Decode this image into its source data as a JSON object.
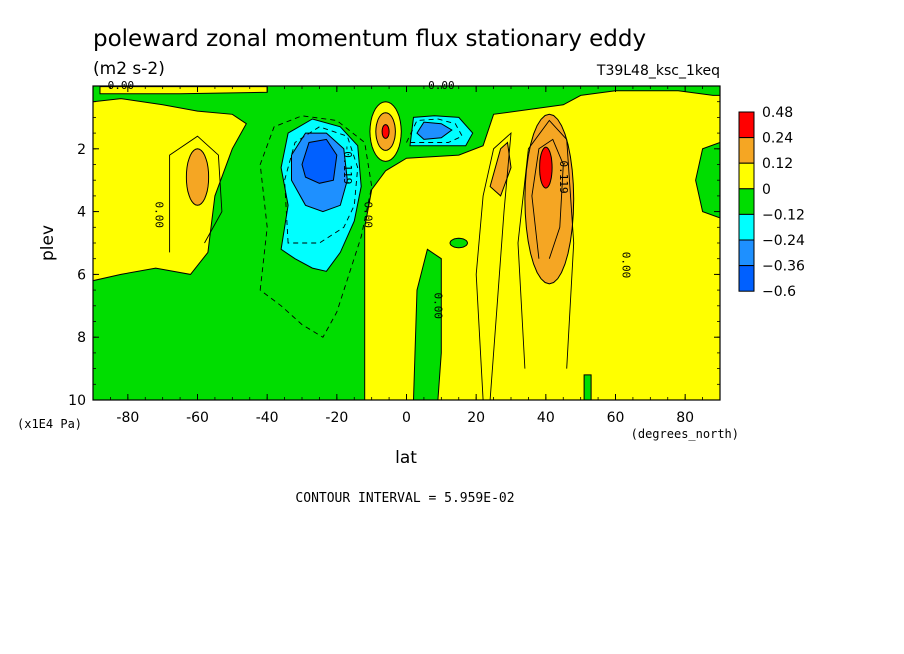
{
  "chart_data": {
    "type": "heatmap",
    "title": "poleward zonal momentum flux stationary eddy",
    "units": "(m2 s-2)",
    "run_label": "T39L48_ksc_1keq",
    "xlabel": "lat",
    "xunits": "(degrees_north)",
    "ylabel": "plev",
    "yunits": "(x1E4 Pa)",
    "xlim": [
      -90,
      90
    ],
    "ylim": [
      10,
      0
    ],
    "x_ticks": [
      -80,
      -60,
      -40,
      -20,
      0,
      20,
      40,
      60,
      80
    ],
    "y_ticks": [
      2,
      4,
      6,
      8,
      10
    ],
    "contour_interval_text": "CONTOUR INTERVAL = 5.959E-02",
    "legend": {
      "placement": "right",
      "labels": [
        "0.48",
        "0.24",
        "0.12",
        "0",
        "−0.12",
        "−0.24",
        "−0.36",
        "−0.6"
      ],
      "colors": [
        "#ff0000",
        "#f5a623",
        "#ffff00",
        "#00dd00",
        "#00ffff",
        "#1e90ff",
        "#0060ff",
        "#ffffff"
      ]
    },
    "band_colors": {
      "neg_strong": "#0060ff",
      "neg_mid": "#1e90ff",
      "neg_weak": "#00ffff",
      "neg_small": "#00dd00",
      "pos_small": "#ffff00",
      "pos_mid": "#f5a623",
      "pos_strong": "#ff0000"
    },
    "contour_labels": [
      {
        "text": "0.00",
        "lat": -82,
        "plev": 0.1
      },
      {
        "text": "0.00",
        "lat": 10,
        "plev": 0.1
      },
      {
        "text": "0.00",
        "lat": -72,
        "plev": 4.1
      },
      {
        "text": "-0.119",
        "lat": -18,
        "plev": 2.5
      },
      {
        "text": "0.00",
        "lat": -12,
        "plev": 4.1
      },
      {
        "text": "0.00",
        "lat": 8,
        "plev": 7.0
      },
      {
        "text": "0.119",
        "lat": 44,
        "plev": 2.9
      },
      {
        "text": "0.00",
        "lat": 62,
        "plev": 5.7
      }
    ],
    "features": [
      {
        "kind": "max",
        "lat": -60,
        "plev": 2.9,
        "value": 0.18
      },
      {
        "kind": "min",
        "lat": -25,
        "plev": 2.7,
        "value": -0.55
      },
      {
        "kind": "max",
        "lat": -6,
        "plev": 1.5,
        "value": 0.4
      },
      {
        "kind": "min",
        "lat": 6,
        "plev": 1.4,
        "value": -0.3
      },
      {
        "kind": "max",
        "lat": 27,
        "plev": 2.6,
        "value": 0.2
      },
      {
        "kind": "max",
        "lat": 40,
        "plev": 2.6,
        "value": 0.5
      },
      {
        "kind": "min",
        "lat": 8,
        "plev": 7.0,
        "value": -0.05
      },
      {
        "kind": "min",
        "lat": -70,
        "plev": 5.0,
        "value": -0.02
      }
    ]
  }
}
